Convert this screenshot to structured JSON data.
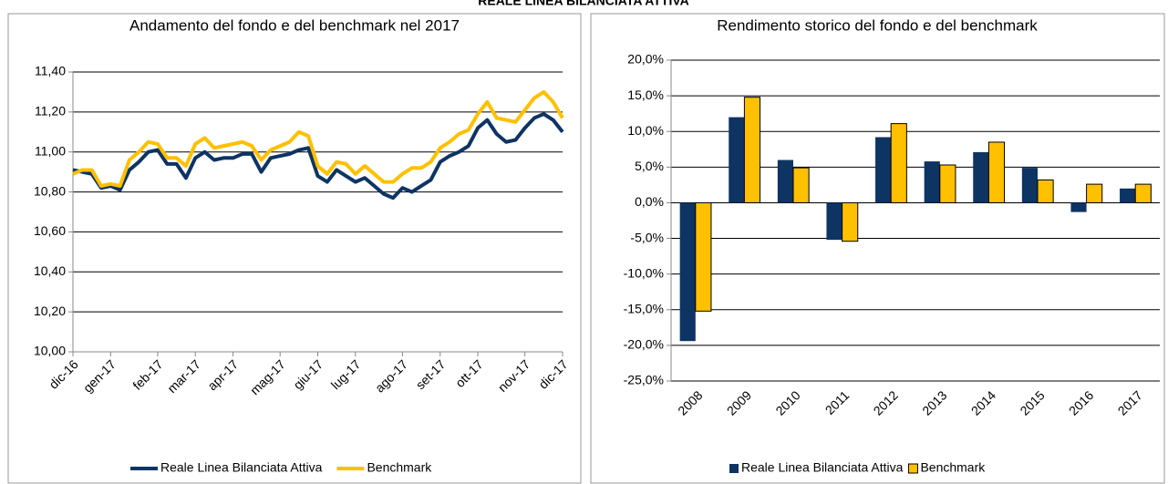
{
  "header": {
    "title": "REALE LINEA BILANCIATA ATTIVA"
  },
  "chart_data": [
    {
      "type": "line",
      "title": "Andamento del fondo e del benchmark nel 2017",
      "categories": [
        "dic-16",
        null,
        null,
        null,
        "gen-17",
        null,
        null,
        null,
        null,
        "feb-17",
        null,
        null,
        null,
        "mar-17",
        null,
        null,
        null,
        "apr-17",
        null,
        null,
        null,
        null,
        "mag-17",
        null,
        null,
        null,
        "giu-17",
        null,
        null,
        null,
        "lug-17",
        null,
        null,
        null,
        null,
        "ago-17",
        null,
        null,
        null,
        "set-17",
        null,
        null,
        null,
        "ott-17",
        null,
        null,
        null,
        null,
        "nov-17",
        null,
        null,
        null,
        "dic-17"
      ],
      "series": [
        {
          "name": "Reale Linea Bilanciata Attiva",
          "color": "#0d3463",
          "values": [
            10.91,
            10.9,
            10.89,
            10.82,
            10.83,
            10.81,
            10.91,
            10.95,
            11.0,
            11.01,
            10.94,
            10.94,
            10.87,
            10.97,
            11.0,
            10.96,
            10.97,
            10.97,
            10.99,
            10.99,
            10.9,
            10.97,
            10.98,
            10.99,
            11.01,
            11.02,
            10.88,
            10.85,
            10.91,
            10.88,
            10.85,
            10.87,
            10.83,
            10.79,
            10.77,
            10.82,
            10.8,
            10.83,
            10.86,
            10.95,
            10.98,
            11.0,
            11.03,
            11.12,
            11.16,
            11.09,
            11.05,
            11.06,
            11.12,
            11.17,
            11.19,
            11.16,
            11.1
          ]
        },
        {
          "name": "Benchmark",
          "color": "#ffc000",
          "values": [
            10.89,
            10.91,
            10.91,
            10.83,
            10.84,
            10.83,
            10.96,
            11.0,
            11.05,
            11.04,
            10.97,
            10.97,
            10.93,
            11.04,
            11.07,
            11.02,
            11.03,
            11.04,
            11.05,
            11.03,
            10.96,
            11.01,
            11.03,
            11.05,
            11.1,
            11.08,
            10.93,
            10.89,
            10.95,
            10.94,
            10.89,
            10.93,
            10.89,
            10.85,
            10.85,
            10.89,
            10.92,
            10.92,
            10.95,
            11.02,
            11.05,
            11.09,
            11.11,
            11.19,
            11.25,
            11.17,
            11.16,
            11.15,
            11.21,
            11.27,
            11.3,
            11.25,
            11.17
          ]
        }
      ],
      "ylim": [
        10,
        11.4
      ],
      "yticks": [
        {
          "value": 10,
          "label": "10,00"
        },
        {
          "value": 10.2,
          "label": "10,20"
        },
        {
          "value": 10.4,
          "label": "10,40"
        },
        {
          "value": 10.6,
          "label": "10,60"
        },
        {
          "value": 10.8,
          "label": "10,80"
        },
        {
          "value": 11,
          "label": "11,00"
        },
        {
          "value": 11.2,
          "label": "11,20"
        },
        {
          "value": 11.4,
          "label": "11,40"
        }
      ],
      "grid": true,
      "legend": "bottom"
    },
    {
      "type": "bar",
      "title": "Rendimento storico del fondo e del benchmark",
      "categories": [
        "2008",
        "2009",
        "2010",
        "2011",
        "2012",
        "2013",
        "2014",
        "2015",
        "2016",
        "2017"
      ],
      "series": [
        {
          "name": "Reale Linea Bilanciata Attiva",
          "color": "#0d3463",
          "values": [
            -19.4,
            12.0,
            6.0,
            -5.2,
            9.2,
            5.8,
            7.1,
            4.9,
            -1.3,
            2.0
          ]
        },
        {
          "name": "Benchmark",
          "color": "#ffc000",
          "values": [
            -15.2,
            14.8,
            4.9,
            -5.4,
            11.1,
            5.3,
            8.5,
            3.2,
            2.6,
            2.6
          ]
        }
      ],
      "ylim": [
        -25,
        20
      ],
      "yticks": [
        {
          "value": -25,
          "label": "-25,0%"
        },
        {
          "value": -20,
          "label": "-20,0%"
        },
        {
          "value": -15,
          "label": "-15,0%"
        },
        {
          "value": -10,
          "label": "-10,0%"
        },
        {
          "value": -5,
          "label": "-5,0%"
        },
        {
          "value": 0,
          "label": "0,0%"
        },
        {
          "value": 5,
          "label": "5,0%"
        },
        {
          "value": 10,
          "label": "10,0%"
        },
        {
          "value": 15,
          "label": "15,0%"
        },
        {
          "value": 20,
          "label": "20,0%"
        }
      ],
      "grid": true,
      "legend": "bottom"
    }
  ]
}
